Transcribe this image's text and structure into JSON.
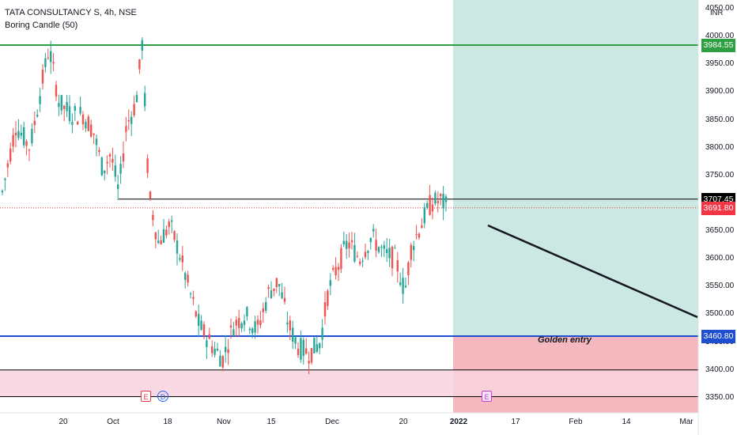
{
  "legend": {
    "symbol_line": "TATA CONSULTANCY S, 4h, NSE",
    "indicator_line": "Boring Candle (50)"
  },
  "currency": "INR",
  "price_axis": {
    "min": 3325,
    "max": 4050,
    "ticks": [
      "4050.00",
      "4000.00",
      "3950.00",
      "3900.00",
      "3850.00",
      "3800.00",
      "3750.00",
      "3700.00",
      "3650.00",
      "3600.00",
      "3550.00",
      "3500.00",
      "3450.00",
      "3400.00",
      "3350.00"
    ]
  },
  "time_axis": {
    "ticks": [
      "20",
      "Oct",
      "18",
      "Nov",
      "15",
      "Dec",
      "20",
      "2022",
      "17",
      "Feb",
      "14",
      "Mar"
    ]
  },
  "levels": [
    {
      "label": "3984.55",
      "value": 3984.55,
      "color": "#2ea043"
    },
    {
      "label": "3707.45",
      "value": 3707.45,
      "color": "#000000"
    },
    {
      "label": "3691.80",
      "value": 3691.8,
      "color": "#f23645"
    },
    {
      "label": "3460.80",
      "value": 3460.8,
      "color": "#1f4fd1"
    }
  ],
  "horizontal_lines": [
    {
      "value": 3984.55,
      "color": "#2ea043"
    },
    {
      "value": 3707.45,
      "color": "#000000"
    },
    {
      "value": 3460.8,
      "color": "#1f4fd1"
    },
    {
      "value": 3400,
      "color": "#000000"
    },
    {
      "value": 3352,
      "color": "#000000"
    }
  ],
  "zone_band": {
    "from": 3352,
    "to": 3400,
    "color": "#f8d3df"
  },
  "target_zone": {
    "from": 3460.8,
    "to": 4050,
    "color": "#cce8e2"
  },
  "stop_zone": {
    "from": 3325,
    "to": 3460.8,
    "color": "#f4b8be"
  },
  "annotation": {
    "label": "Golden entry"
  },
  "trend_line": {
    "from": 3660,
    "to": 3495
  },
  "events": [
    {
      "label": "E",
      "kind": "earnings-past",
      "color": "#e0394a"
    },
    {
      "label": "D",
      "kind": "dividend",
      "color": "#2962ff"
    },
    {
      "label": "E",
      "kind": "earnings-future",
      "color": "#c63bd1"
    }
  ],
  "colors": {
    "up": "#26a69a",
    "down": "#ef5350"
  }
}
